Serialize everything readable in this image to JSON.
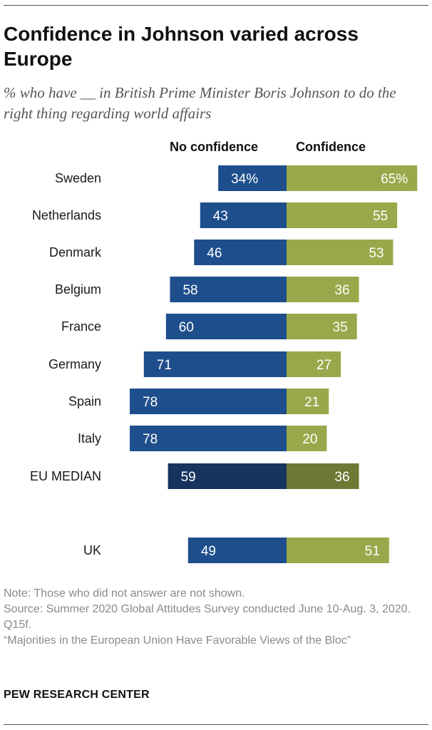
{
  "header": {
    "title": "Confidence in Johnson varied across Europe",
    "subtitle": "% who have __ in British Prime Minister Boris Johnson to do the right thing regarding world affairs"
  },
  "legend": {
    "no_confidence": "No confidence",
    "confidence": "Confidence"
  },
  "colors": {
    "no_confidence": "#1f4e8c",
    "confidence": "#98a94b",
    "median_no_confidence": "#17345f",
    "median_confidence": "#6e7935"
  },
  "chart_data": {
    "type": "bar",
    "orientation": "horizontal-diverging",
    "title": "Confidence in Johnson varied across Europe",
    "categories": [
      "Sweden",
      "Netherlands",
      "Denmark",
      "Belgium",
      "France",
      "Germany",
      "Spain",
      "Italy",
      "EU MEDIAN",
      "UK"
    ],
    "series": [
      {
        "name": "No confidence",
        "values": [
          34,
          43,
          46,
          58,
          60,
          71,
          78,
          78,
          59,
          49
        ],
        "labels": [
          "34%",
          "43",
          "46",
          "58",
          "60",
          "71",
          "78",
          "78",
          "59",
          "49"
        ]
      },
      {
        "name": "Confidence",
        "values": [
          65,
          55,
          53,
          36,
          35,
          27,
          21,
          20,
          36,
          51
        ],
        "labels": [
          "65%",
          "55",
          "53",
          "36",
          "35",
          "27",
          "21",
          "20",
          "36",
          "51"
        ]
      }
    ],
    "highlight_category": "EU MEDIAN",
    "unit": "%"
  },
  "notes": {
    "note": "Note: Those who did not answer are not shown.",
    "source": "Source: Summer 2020 Global Attitudes Survey conducted June 10-Aug. 3, 2020. Q15f.",
    "report": "“Majorities in the European Union Have Favorable Views of the Bloc”"
  },
  "footer": {
    "org": "PEW RESEARCH CENTER"
  }
}
